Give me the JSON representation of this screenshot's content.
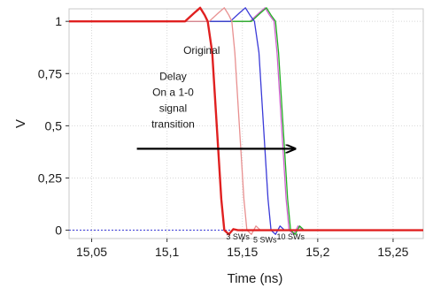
{
  "chart_data": {
    "type": "line",
    "title": "",
    "xlabel": "Time (ns)",
    "ylabel": "V",
    "xlim": [
      15.035,
      15.27
    ],
    "ylim": [
      -0.04,
      1.06
    ],
    "x_ticks": [
      15.05,
      15.1,
      15.15,
      15.2,
      15.25
    ],
    "x_tick_labels": [
      "15,05",
      "15,1",
      "15,15",
      "15,2",
      "15,25"
    ],
    "y_ticks": [
      0,
      0.25,
      0.5,
      0.75,
      1
    ],
    "y_tick_labels": [
      "0",
      "0,25",
      "0,5",
      "0,75",
      "1"
    ],
    "grid": true,
    "series": [
      {
        "color": "#e02020",
        "points": [
          [
            15.035,
            1.0
          ],
          [
            15.112,
            1.0
          ],
          [
            15.118,
            1.04
          ],
          [
            15.122,
            1.065
          ],
          [
            15.125,
            1.03
          ],
          [
            15.127,
            1.0
          ],
          [
            15.13,
            0.85
          ],
          [
            15.133,
            0.5
          ],
          [
            15.136,
            0.15
          ],
          [
            15.138,
            0.0
          ],
          [
            15.141,
            -0.02
          ],
          [
            15.144,
            0.005
          ],
          [
            15.147,
            0.0
          ],
          [
            15.27,
            0.0
          ]
        ]
      },
      {
        "color": "#e89090",
        "points": [
          [
            15.035,
            1.0
          ],
          [
            15.128,
            1.0
          ],
          [
            15.134,
            1.04
          ],
          [
            15.138,
            1.065
          ],
          [
            15.141,
            1.03
          ],
          [
            15.143,
            1.0
          ],
          [
            15.145,
            0.85
          ],
          [
            15.148,
            0.5
          ],
          [
            15.151,
            0.15
          ],
          [
            15.153,
            0.0
          ],
          [
            15.156,
            -0.02
          ],
          [
            15.159,
            0.02
          ],
          [
            15.162,
            0.0
          ],
          [
            15.27,
            0.0
          ]
        ]
      },
      {
        "color": "#3a3ad8",
        "points": [
          [
            15.035,
            1.0
          ],
          [
            15.142,
            1.0
          ],
          [
            15.148,
            1.04
          ],
          [
            15.152,
            1.065
          ],
          [
            15.155,
            1.03
          ],
          [
            15.158,
            1.0
          ],
          [
            15.161,
            0.85
          ],
          [
            15.164,
            0.5
          ],
          [
            15.167,
            0.15
          ],
          [
            15.169,
            0.0
          ],
          [
            15.172,
            -0.02
          ],
          [
            15.175,
            0.02
          ],
          [
            15.178,
            0.0
          ],
          [
            15.27,
            0.0
          ]
        ]
      },
      {
        "color": "#22b022",
        "points": [
          [
            15.035,
            1.0
          ],
          [
            15.156,
            1.0
          ],
          [
            15.162,
            1.04
          ],
          [
            15.166,
            1.065
          ],
          [
            15.169,
            1.03
          ],
          [
            15.172,
            1.0
          ],
          [
            15.174,
            0.85
          ],
          [
            15.177,
            0.5
          ],
          [
            15.18,
            0.15
          ],
          [
            15.182,
            0.0
          ],
          [
            15.185,
            -0.02
          ],
          [
            15.188,
            0.02
          ],
          [
            15.191,
            0.0
          ],
          [
            15.27,
            0.0
          ]
        ]
      },
      {
        "color": "#d060d0",
        "points": [
          [
            15.035,
            1.0
          ],
          [
            15.155,
            1.0
          ],
          [
            15.161,
            1.04
          ],
          [
            15.165,
            1.065
          ],
          [
            15.168,
            1.03
          ],
          [
            15.171,
            1.0
          ],
          [
            15.173,
            0.85
          ],
          [
            15.176,
            0.5
          ],
          [
            15.179,
            0.15
          ],
          [
            15.181,
            0.0
          ],
          [
            15.184,
            -0.02
          ],
          [
            15.187,
            0.02
          ],
          [
            15.19,
            0.0
          ],
          [
            15.27,
            0.0
          ]
        ]
      }
    ],
    "baseline": {
      "y": 0,
      "color": "#3a3ad8"
    },
    "annotations": {
      "original": {
        "text": "Original",
        "x": 15.123,
        "y": 0.845
      },
      "delay": {
        "lines": [
          "Delay",
          "On a 1-0",
          "signal",
          "transition"
        ],
        "x": 15.104,
        "y": 0.72
      },
      "sw3": {
        "text": "3 SWs",
        "x": 15.147,
        "y": -0.045
      },
      "sw5": {
        "text": "5 SWs",
        "x": 15.165,
        "y": -0.06
      },
      "sw10": {
        "text": "10 SWs",
        "x": 15.182,
        "y": -0.045
      }
    },
    "arrow": {
      "x1": 15.08,
      "y1": 0.39,
      "x2": 15.185,
      "y2": 0.39
    }
  }
}
